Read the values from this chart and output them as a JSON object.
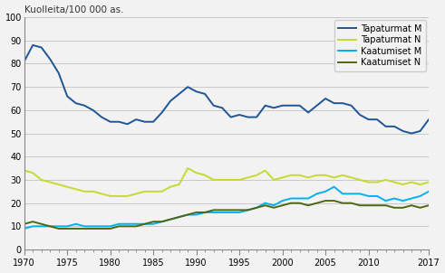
{
  "title": "Kuolleita/100 000 as.",
  "years": [
    1970,
    1971,
    1972,
    1973,
    1974,
    1975,
    1976,
    1977,
    1978,
    1979,
    1980,
    1981,
    1982,
    1983,
    1984,
    1985,
    1986,
    1987,
    1988,
    1989,
    1990,
    1991,
    1992,
    1993,
    1994,
    1995,
    1996,
    1997,
    1998,
    1999,
    2000,
    2001,
    2002,
    2003,
    2004,
    2005,
    2006,
    2007,
    2008,
    2009,
    2010,
    2011,
    2012,
    2013,
    2014,
    2015,
    2016,
    2017
  ],
  "tapaturmat_M": [
    81,
    88,
    87,
    82,
    76,
    66,
    63,
    62,
    60,
    57,
    55,
    55,
    54,
    56,
    55,
    55,
    59,
    64,
    67,
    70,
    68,
    67,
    62,
    61,
    57,
    58,
    57,
    57,
    62,
    61,
    62,
    62,
    62,
    59,
    62,
    65,
    63,
    63,
    62,
    58,
    56,
    56,
    53,
    53,
    51,
    50,
    51,
    56
  ],
  "tapaturmat_N": [
    34,
    33,
    30,
    29,
    28,
    27,
    26,
    25,
    25,
    24,
    23,
    23,
    23,
    24,
    25,
    25,
    25,
    27,
    28,
    35,
    33,
    32,
    30,
    30,
    30,
    30,
    31,
    32,
    34,
    30,
    31,
    32,
    32,
    31,
    32,
    32,
    31,
    32,
    31,
    30,
    29,
    29,
    30,
    29,
    28,
    29,
    28,
    29
  ],
  "kaatumiset_M": [
    9,
    10,
    10,
    10,
    10,
    10,
    11,
    10,
    10,
    10,
    10,
    11,
    11,
    11,
    11,
    11,
    12,
    13,
    14,
    15,
    15,
    16,
    16,
    16,
    16,
    16,
    17,
    18,
    20,
    19,
    21,
    22,
    22,
    22,
    24,
    25,
    27,
    24,
    24,
    24,
    23,
    23,
    21,
    22,
    21,
    22,
    23,
    25
  ],
  "kaatumiset_N": [
    11,
    12,
    11,
    10,
    9,
    9,
    9,
    9,
    9,
    9,
    9,
    10,
    10,
    10,
    11,
    12,
    12,
    13,
    14,
    15,
    16,
    16,
    17,
    17,
    17,
    17,
    17,
    18,
    19,
    18,
    19,
    20,
    20,
    19,
    20,
    21,
    21,
    20,
    20,
    19,
    19,
    19,
    19,
    18,
    18,
    19,
    18,
    19
  ],
  "color_tapaturmat_M": "#1f5496",
  "color_tapaturmat_N": "#c6d932",
  "color_kaatumiset_M": "#00b0f0",
  "color_kaatumiset_N": "#4d6714",
  "legend_labels": [
    "Tapaturmat M",
    "Tapaturmat N",
    "Kaatumiset M",
    "Kaatumiset N"
  ],
  "ylim": [
    0,
    100
  ],
  "yticks": [
    0,
    10,
    20,
    30,
    40,
    50,
    60,
    70,
    80,
    90,
    100
  ],
  "xticks": [
    1970,
    1975,
    1980,
    1985,
    1990,
    1995,
    2000,
    2005,
    2010,
    2017
  ],
  "background_color": "#f2f2f2",
  "grid_color": "#c8c8c8",
  "line_width": 1.4
}
